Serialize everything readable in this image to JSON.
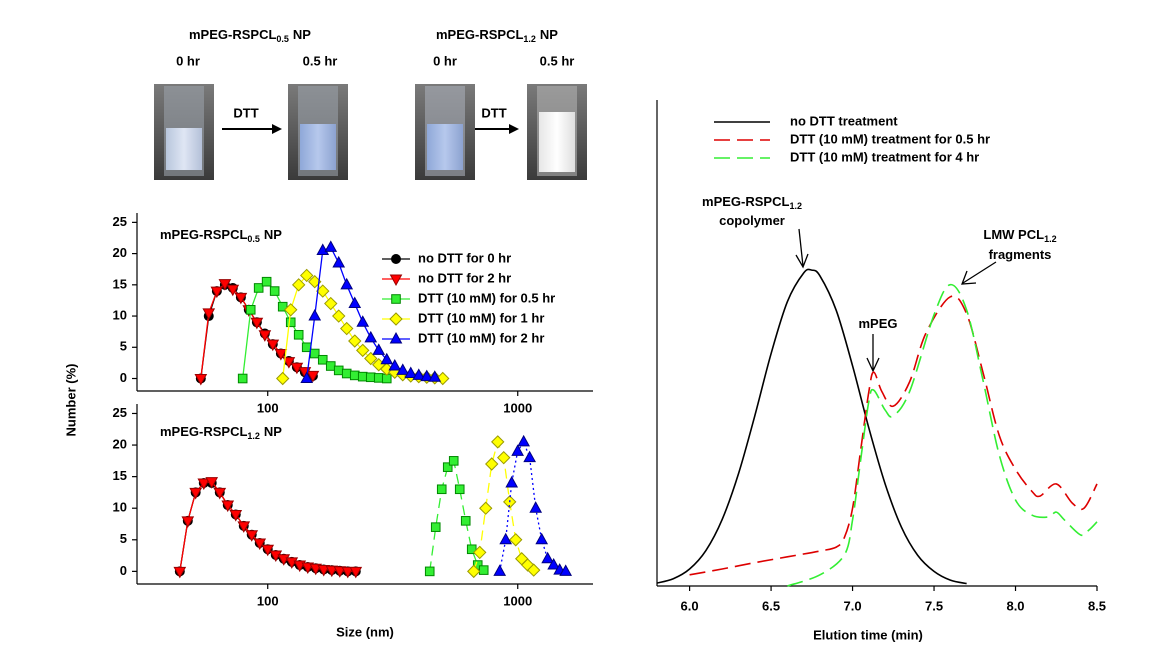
{
  "photos": {
    "groups": [
      {
        "title": {
          "text": "mPEG-RSPCL",
          "sub": "0.5",
          "suffix": "NP"
        },
        "before": "0 hr",
        "after": "0.5 hr",
        "reagent": "DTT"
      },
      {
        "title": {
          "text": "mPEG-RSPCL",
          "sub": "1.2",
          "suffix": "NP"
        },
        "before": "0 hr",
        "after": "0.5 hr",
        "reagent": "DTT"
      }
    ]
  },
  "chart_data": [
    {
      "type": "line",
      "title": {
        "text": "mPEG-RSPCL",
        "sub": "0.5",
        "suffix": "NP"
      },
      "ylabel": "Number (%)",
      "xscale": "log",
      "xlim": [
        30,
        2000
      ],
      "xticks": [
        100,
        1000
      ],
      "ylim": [
        -2,
        26.5
      ],
      "yticks": [
        0,
        5,
        10,
        15,
        20,
        25
      ],
      "legend": "upper right",
      "series": [
        {
          "name": "no DTT for 0 hr",
          "color": "#000000",
          "edgecolor": "#000000",
          "marker": "circle",
          "linestyle": "solid",
          "x": [
            54.0,
            58.1,
            62.6,
            67.4,
            72.5,
            78.1,
            84.0,
            90.5,
            97.4,
            104.8,
            112.9,
            121.5,
            130.8,
            140.8,
            151.6
          ],
          "values": [
            0,
            10,
            14,
            15,
            14.5,
            13,
            11,
            9,
            7.2,
            5.5,
            4,
            2.8,
            1.8,
            1,
            0.4
          ]
        },
        {
          "name": "no DTT for 2 hr",
          "color": "#ff0000",
          "edgecolor": "#990000",
          "marker": "triangle-down",
          "linestyle": "solid",
          "x": [
            54.0,
            58.1,
            62.6,
            67.4,
            72.5,
            78.1,
            84.0,
            90.5,
            97.4,
            104.8,
            112.9,
            121.5,
            130.8,
            140.8,
            151.6
          ],
          "values": [
            0,
            10.5,
            14,
            15.2,
            14.3,
            13,
            11,
            9,
            7,
            5.5,
            4,
            2.7,
            1.8,
            1.1,
            0.5
          ]
        },
        {
          "name": "DTT (10 mM) for 0.5 hr",
          "color": "#33ee33",
          "edgecolor": "#008800",
          "marker": "square",
          "linestyle": "solid",
          "x": [
            79.4,
            85.5,
            92.0,
            99.0,
            106.6,
            114.8,
            123.6,
            133.0,
            143.2,
            154.2,
            166.0,
            178.7,
            192.3,
            207.0,
            222.9,
            239.9,
            258.3,
            278.0,
            299.3
          ],
          "values": [
            0,
            11,
            14.5,
            15.5,
            14,
            11.5,
            9,
            7,
            5,
            4,
            3,
            2,
            1.3,
            0.8,
            0.5,
            0.3,
            0.2,
            0.1,
            0
          ]
        },
        {
          "name": "DTT (10 mM) for 1 hr",
          "color": "#ffff00",
          "edgecolor": "#999900",
          "marker": "diamond",
          "linestyle": "solid",
          "x": [
            114.8,
            123.6,
            133.0,
            143.2,
            154.2,
            166.0,
            178.7,
            192.3,
            207.0,
            222.9,
            239.9,
            258.3,
            278.0,
            299.3,
            322.2,
            346.8,
            373.3,
            401.9,
            432.6,
            465.7,
            501.3
          ],
          "values": [
            0,
            11,
            15,
            16.5,
            15.5,
            14,
            12,
            10,
            8,
            6,
            4.5,
            3.2,
            2.2,
            1.5,
            1,
            0.6,
            0.4,
            0.3,
            0.2,
            0.1,
            0
          ]
        },
        {
          "name": "DTT (10 mM) for 2 hr",
          "color": "#0000ff",
          "edgecolor": "#000080",
          "marker": "triangle-up",
          "linestyle": "solid",
          "x": [
            143.2,
            154.2,
            166.0,
            178.7,
            192.3,
            207.0,
            222.9,
            239.9,
            258.3,
            278.0,
            299.3,
            322.2,
            346.8,
            373.3,
            401.9,
            432.6,
            465.7
          ],
          "values": [
            0,
            10,
            20.5,
            21,
            18.5,
            15,
            12,
            9,
            6.5,
            4.5,
            3,
            2,
            1.3,
            0.8,
            0.5,
            0.3,
            0.2
          ]
        }
      ]
    },
    {
      "type": "line",
      "title": {
        "text": "mPEG-RSPCL",
        "sub": "1.2",
        "suffix": "NP"
      },
      "xlabel": "Size (nm)",
      "xscale": "log",
      "xlim": [
        30,
        2000
      ],
      "xticks": [
        100,
        1000
      ],
      "ylim": [
        -2,
        26.5
      ],
      "yticks": [
        0,
        5,
        10,
        15,
        20,
        25
      ],
      "series": [
        {
          "color": "#000000",
          "edgecolor": "#000000",
          "marker": "circle",
          "linestyle": "solid",
          "x": [
            44.5,
            47.9,
            51.5,
            55.5,
            59.7,
            64.3,
            69.2,
            74.5,
            80.2,
            86.3,
            92.9,
            100.0,
            107.7,
            115.9,
            124.8,
            134.3,
            144.6,
            155.6,
            167.5,
            180.4,
            194.2,
            209.0,
            225.0
          ],
          "values": [
            0,
            8,
            12.5,
            14,
            14,
            12.5,
            10.5,
            9,
            7.2,
            5.8,
            4.5,
            3.5,
            2.6,
            2,
            1.5,
            1,
            0.7,
            0.5,
            0.3,
            0.2,
            0.1,
            0,
            0
          ]
        },
        {
          "color": "#ff0000",
          "edgecolor": "#990000",
          "marker": "triangle-down",
          "linestyle": "solid",
          "x": [
            44.5,
            47.9,
            51.5,
            55.5,
            59.7,
            64.3,
            69.2,
            74.5,
            80.2,
            86.3,
            92.9,
            100.0,
            107.7,
            115.9,
            124.8,
            134.3,
            144.6,
            155.6,
            167.5,
            180.4,
            194.2,
            209.0,
            225.0
          ],
          "values": [
            0,
            8,
            12.5,
            14,
            14.2,
            12.5,
            10.5,
            9,
            7.2,
            5.8,
            4.5,
            3.5,
            2.6,
            2,
            1.5,
            1,
            0.7,
            0.5,
            0.3,
            0.2,
            0.1,
            0,
            0
          ]
        },
        {
          "color": "#33ee33",
          "edgecolor": "#008800",
          "marker": "square",
          "linestyle": "dashed",
          "x": [
            444.6,
            469.9,
            496.6,
            524.8,
            554.6,
            586.1,
            619.4,
            654.6,
            691.8,
            731.1
          ],
          "values": [
            0,
            7,
            13,
            16.5,
            17.5,
            13,
            8,
            3.5,
            1,
            0.2
          ]
        },
        {
          "color": "#ffff00",
          "edgecolor": "#999900",
          "marker": "diamond",
          "linestyle": "dashed",
          "x": [
            666.8,
            704.7,
            744.7,
            787.0,
            831.7,
            878.9,
            928.8,
            981.6,
            1037.3,
            1096.3,
            1158.5
          ],
          "values": [
            0,
            3,
            10,
            17,
            20.5,
            18,
            11,
            5,
            2,
            1,
            0.2
          ]
        },
        {
          "color": "#0000ff",
          "edgecolor": "#000080",
          "marker": "triangle-up",
          "linestyle": "dotted",
          "x": [
            847,
            895,
            946,
            999,
            1056,
            1116,
            1180,
            1247,
            1317,
            1392,
            1471,
            1555
          ],
          "values": [
            0,
            5,
            14,
            19,
            20.5,
            18,
            10,
            5,
            2,
            1,
            0.2,
            0
          ]
        }
      ]
    },
    {
      "type": "line",
      "xlabel": "Elution time (min)",
      "xscale": "linear",
      "smooth": true,
      "legend": "upper left",
      "xlim": [
        5.8,
        8.5
      ],
      "xticks": [
        {
          "value": 6,
          "label": "6.0"
        },
        6.5,
        {
          "value": 7,
          "label": "7.0"
        },
        7.5,
        {
          "value": 8,
          "label": "8.0"
        },
        8.5
      ],
      "ylim": [
        0,
        100
      ],
      "annotations": [
        {
          "text": "mPEG-RSPCL",
          "sub": "1.2"
        },
        {
          "text": "copolymer"
        },
        {
          "text": "mPEG"
        },
        {
          "text": "LMW PCL",
          "sub": "1.2"
        },
        {
          "text": "fragments"
        }
      ],
      "series": [
        {
          "name": "no DTT treatment",
          "color": "#000000",
          "marker": "none",
          "linestyle": "solid",
          "x": [
            5.8,
            5.9,
            6.0,
            6.1,
            6.2,
            6.3,
            6.4,
            6.5,
            6.6,
            6.7,
            6.75,
            6.8,
            6.9,
            7.0,
            7.1,
            7.2,
            7.3,
            7.4,
            7.5,
            7.6,
            7.7
          ],
          "values": [
            0.6,
            1.5,
            3.5,
            7.3,
            13.7,
            23.1,
            35,
            47.8,
            58.5,
            64.4,
            65,
            63.8,
            56.7,
            45.3,
            32.5,
            21,
            12.1,
            6.3,
            3,
            1.2,
            0.5
          ]
        },
        {
          "name": "DTT (10 mM) treatment for 0.5 hr",
          "color": "#dd0000",
          "marker": "none",
          "linestyle": "dashed",
          "x": [
            6.0,
            6.2,
            6.4,
            6.6,
            6.8,
            6.9,
            6.95,
            7.0,
            7.05,
            7.1,
            7.13,
            7.18,
            7.25,
            7.35,
            7.45,
            7.6,
            7.7,
            7.8,
            7.9,
            8.0,
            8.1,
            8.15,
            8.25,
            8.35,
            8.42,
            8.5
          ],
          "values": [
            2.3,
            3.5,
            4.8,
            6,
            7.2,
            8,
            10,
            16,
            28,
            40,
            44,
            40,
            37,
            42,
            52,
            59.5,
            56,
            44,
            31,
            24,
            19.5,
            18.5,
            21,
            17,
            16,
            21
          ]
        },
        {
          "name": "DTT (10 mM) treatment for 4 hr",
          "color": "#33ee33",
          "marker": "none",
          "linestyle": "dashed",
          "x": [
            6.6,
            6.8,
            6.95,
            7.0,
            7.05,
            7.1,
            7.13,
            7.2,
            7.25,
            7.35,
            7.5,
            7.6,
            7.7,
            7.8,
            7.9,
            8.0,
            8.1,
            8.2,
            8.25,
            8.3,
            8.4,
            8.45,
            8.5
          ],
          "values": [
            0,
            2.3,
            6.4,
            13.6,
            26,
            38,
            40.3,
            36.2,
            35,
            40,
            55.8,
            62,
            56.8,
            42.4,
            27,
            17.7,
            14.6,
            14.2,
            15.2,
            13.6,
            10.5,
            11.5,
            13.2
          ]
        }
      ]
    }
  ]
}
